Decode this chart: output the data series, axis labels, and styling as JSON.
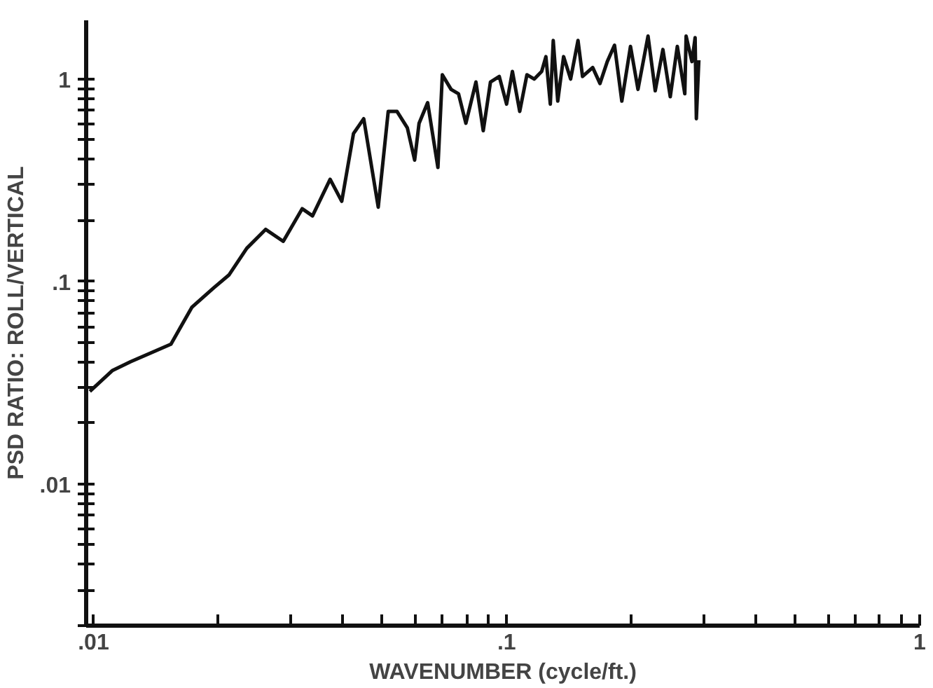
{
  "chart_data": {
    "type": "line",
    "xlabel": "WAVENUMBER (cycle/ft.)",
    "ylabel": "PSD RATIO: ROLL/VERTICAL",
    "log": "xy",
    "grid": false,
    "marker": "none",
    "line_style": "solid",
    "xlim": [
      0.0096,
      1.0
    ],
    "ylim": [
      0.002,
      1.95
    ],
    "xticks": [
      {
        "value": 0.01,
        "label": ".01"
      },
      {
        "value": 0.02,
        "label": null
      },
      {
        "value": 0.03,
        "label": null
      },
      {
        "value": 0.04,
        "label": null
      },
      {
        "value": 0.05,
        "label": null
      },
      {
        "value": 0.06,
        "label": null
      },
      {
        "value": 0.07,
        "label": null
      },
      {
        "value": 0.08,
        "label": null
      },
      {
        "value": 0.09,
        "label": null
      },
      {
        "value": 0.1,
        "label": ".1"
      },
      {
        "value": 0.2,
        "label": null
      },
      {
        "value": 0.3,
        "label": null
      },
      {
        "value": 0.4,
        "label": null
      },
      {
        "value": 0.5,
        "label": null
      },
      {
        "value": 0.6,
        "label": null
      },
      {
        "value": 0.7,
        "label": null
      },
      {
        "value": 0.8,
        "label": null
      },
      {
        "value": 0.9,
        "label": null
      },
      1
    ],
    "yticks": [
      {
        "value": 0.002,
        "label": null
      },
      {
        "value": 0.003,
        "label": null
      },
      {
        "value": 0.004,
        "label": null
      },
      {
        "value": 0.005,
        "label": null
      },
      {
        "value": 0.006,
        "label": null
      },
      {
        "value": 0.007,
        "label": null
      },
      {
        "value": 0.008,
        "label": null
      },
      {
        "value": 0.009,
        "label": null
      },
      {
        "value": 0.01,
        "label": ".01"
      },
      {
        "value": 0.02,
        "label": null
      },
      {
        "value": 0.03,
        "label": null
      },
      {
        "value": 0.04,
        "label": null
      },
      {
        "value": 0.05,
        "label": null
      },
      {
        "value": 0.06,
        "label": null
      },
      {
        "value": 0.07,
        "label": null
      },
      {
        "value": 0.08,
        "label": null
      },
      {
        "value": 0.09,
        "label": null
      },
      {
        "value": 0.1,
        "label": ".1"
      },
      {
        "value": 0.2,
        "label": null
      },
      {
        "value": 0.3,
        "label": null
      },
      {
        "value": 0.4,
        "label": null
      },
      {
        "value": 0.5,
        "label": null
      },
      {
        "value": 0.6,
        "label": null
      },
      {
        "value": 0.7,
        "label": null
      },
      {
        "value": 0.8,
        "label": null
      },
      {
        "value": 0.9,
        "label": null
      },
      1
    ],
    "series": [
      {
        "color": "#111111",
        "x": [
          0.0098,
          0.0111,
          0.0123,
          0.0154,
          0.0173,
          0.0195,
          0.0213,
          0.0235,
          0.0261,
          0.0288,
          0.032,
          0.0339,
          0.0374,
          0.0399,
          0.0426,
          0.0451,
          0.0489,
          0.0517,
          0.0543,
          0.0575,
          0.0599,
          0.0614,
          0.0644,
          0.0682,
          0.0699,
          0.0734,
          0.0765,
          0.0797,
          0.0843,
          0.0878,
          0.0914,
          0.096,
          0.1,
          0.1033,
          0.1076,
          0.112,
          0.1167,
          0.1216,
          0.1245,
          0.1276,
          0.1297,
          0.133,
          0.1374,
          0.1429,
          0.1489,
          0.1527,
          0.1616,
          0.1683,
          0.1753,
          0.1825,
          0.1901,
          0.1995,
          0.208,
          0.22,
          0.229,
          0.239,
          0.249,
          0.259,
          0.27,
          0.272,
          0.281,
          0.286,
          0.288,
          0.292
        ],
        "values": [
          0.0287,
          0.0363,
          0.0402,
          0.0491,
          0.0746,
          0.0927,
          0.108,
          0.146,
          0.181,
          0.158,
          0.229,
          0.211,
          0.32,
          0.249,
          0.538,
          0.637,
          0.233,
          0.692,
          0.692,
          0.575,
          0.398,
          0.605,
          0.765,
          0.366,
          1.05,
          0.889,
          0.846,
          0.605,
          0.967,
          0.556,
          0.967,
          1.03,
          0.752,
          1.09,
          0.692,
          1.05,
          1.0,
          1.09,
          1.29,
          0.752,
          1.55,
          0.778,
          1.29,
          1.0,
          1.55,
          1.03,
          1.14,
          0.951,
          1.22,
          1.47,
          0.778,
          1.45,
          0.889,
          1.63,
          0.875,
          1.4,
          0.818,
          1.45,
          0.846,
          1.63,
          1.22,
          1.6,
          0.637,
          1.24
        ]
      }
    ]
  }
}
